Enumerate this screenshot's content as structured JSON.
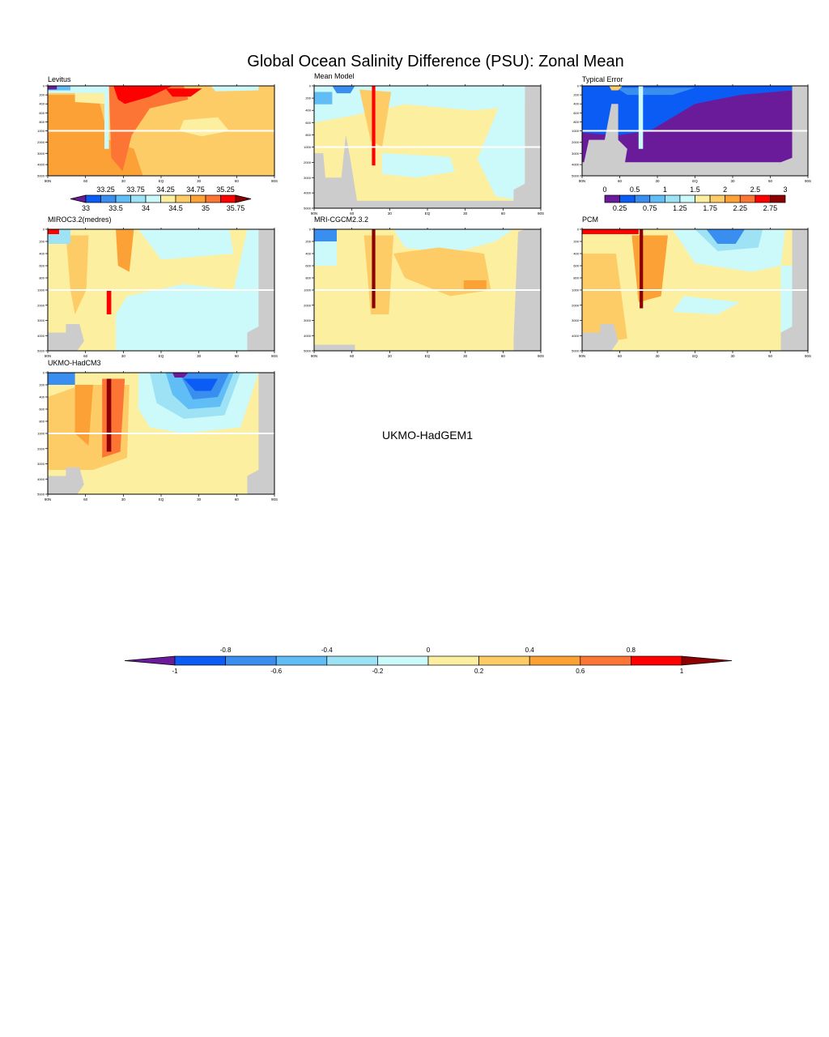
{
  "chart_data": {
    "type": "heatmap",
    "title": "Global Ocean Salinity Difference (PSU): Zonal Mean",
    "x_tick_labels": [
      "90N",
      "60",
      "30",
      "EQ",
      "30",
      "60",
      "90S"
    ],
    "y_tick_labels": [
      "0",
      "200",
      "400",
      "600",
      "800",
      "1000",
      "2000",
      "3000",
      "4000",
      "5000"
    ],
    "panels": [
      {
        "name": "Levitus"
      },
      {
        "name": "Mean Model"
      },
      {
        "name": "Typical Error"
      },
      {
        "name": "MIROC3.2(medres)"
      },
      {
        "name": "MRI-CGCM2.3.2"
      },
      {
        "name": "PCM"
      },
      {
        "name": "UKMO-HadCM3"
      }
    ],
    "missing_panel_label": "UKMO-HadGEM1",
    "colorbars": {
      "levitus": {
        "labels_above": [
          "33.25",
          "33.75",
          "34.25",
          "34.75",
          "35.25"
        ],
        "labels_below": [
          "33",
          "33.5",
          "34",
          "34.5",
          "35",
          "35.75"
        ],
        "colors": [
          "#0a5cf5",
          "#3a8ef0",
          "#60bdf5",
          "#9de3f5",
          "#ccf9f9",
          "#fdefa0",
          "#fdcc66",
          "#fca135",
          "#fd7535",
          "#ff0000"
        ],
        "under_color": "#6a1b9a",
        "over_color": "#8b0000"
      },
      "typical_error": {
        "labels_above": [
          "0",
          "0.5",
          "1",
          "1.5",
          "2",
          "2.5",
          "3"
        ],
        "labels_below": [
          "0.25",
          "0.75",
          "1.25",
          "1.75",
          "2.25",
          "2.75"
        ],
        "colors": [
          "#6a1b9a",
          "#0a5cf5",
          "#3a8ef0",
          "#60bdf5",
          "#9de3f5",
          "#ccf9f9",
          "#fdefa0",
          "#fdcc66",
          "#fca135",
          "#fd7535",
          "#ff0000",
          "#8b0000"
        ]
      },
      "difference": {
        "labels_above": [
          "-0.8",
          "-0.4",
          "0",
          "0.4",
          "0.8"
        ],
        "labels_below": [
          "-1",
          "-0.6",
          "-0.2",
          "0.2",
          "0.6",
          "1"
        ],
        "colors": [
          "#0a5cf5",
          "#3a8ef0",
          "#60bdf5",
          "#9de3f5",
          "#ccf9f9",
          "#fdefa0",
          "#fdcc66",
          "#fca135",
          "#fd7535",
          "#ff0000"
        ],
        "under_color": "#6a1b9a",
        "over_color": "#8b0000"
      }
    },
    "land_color": "#cccccc"
  }
}
